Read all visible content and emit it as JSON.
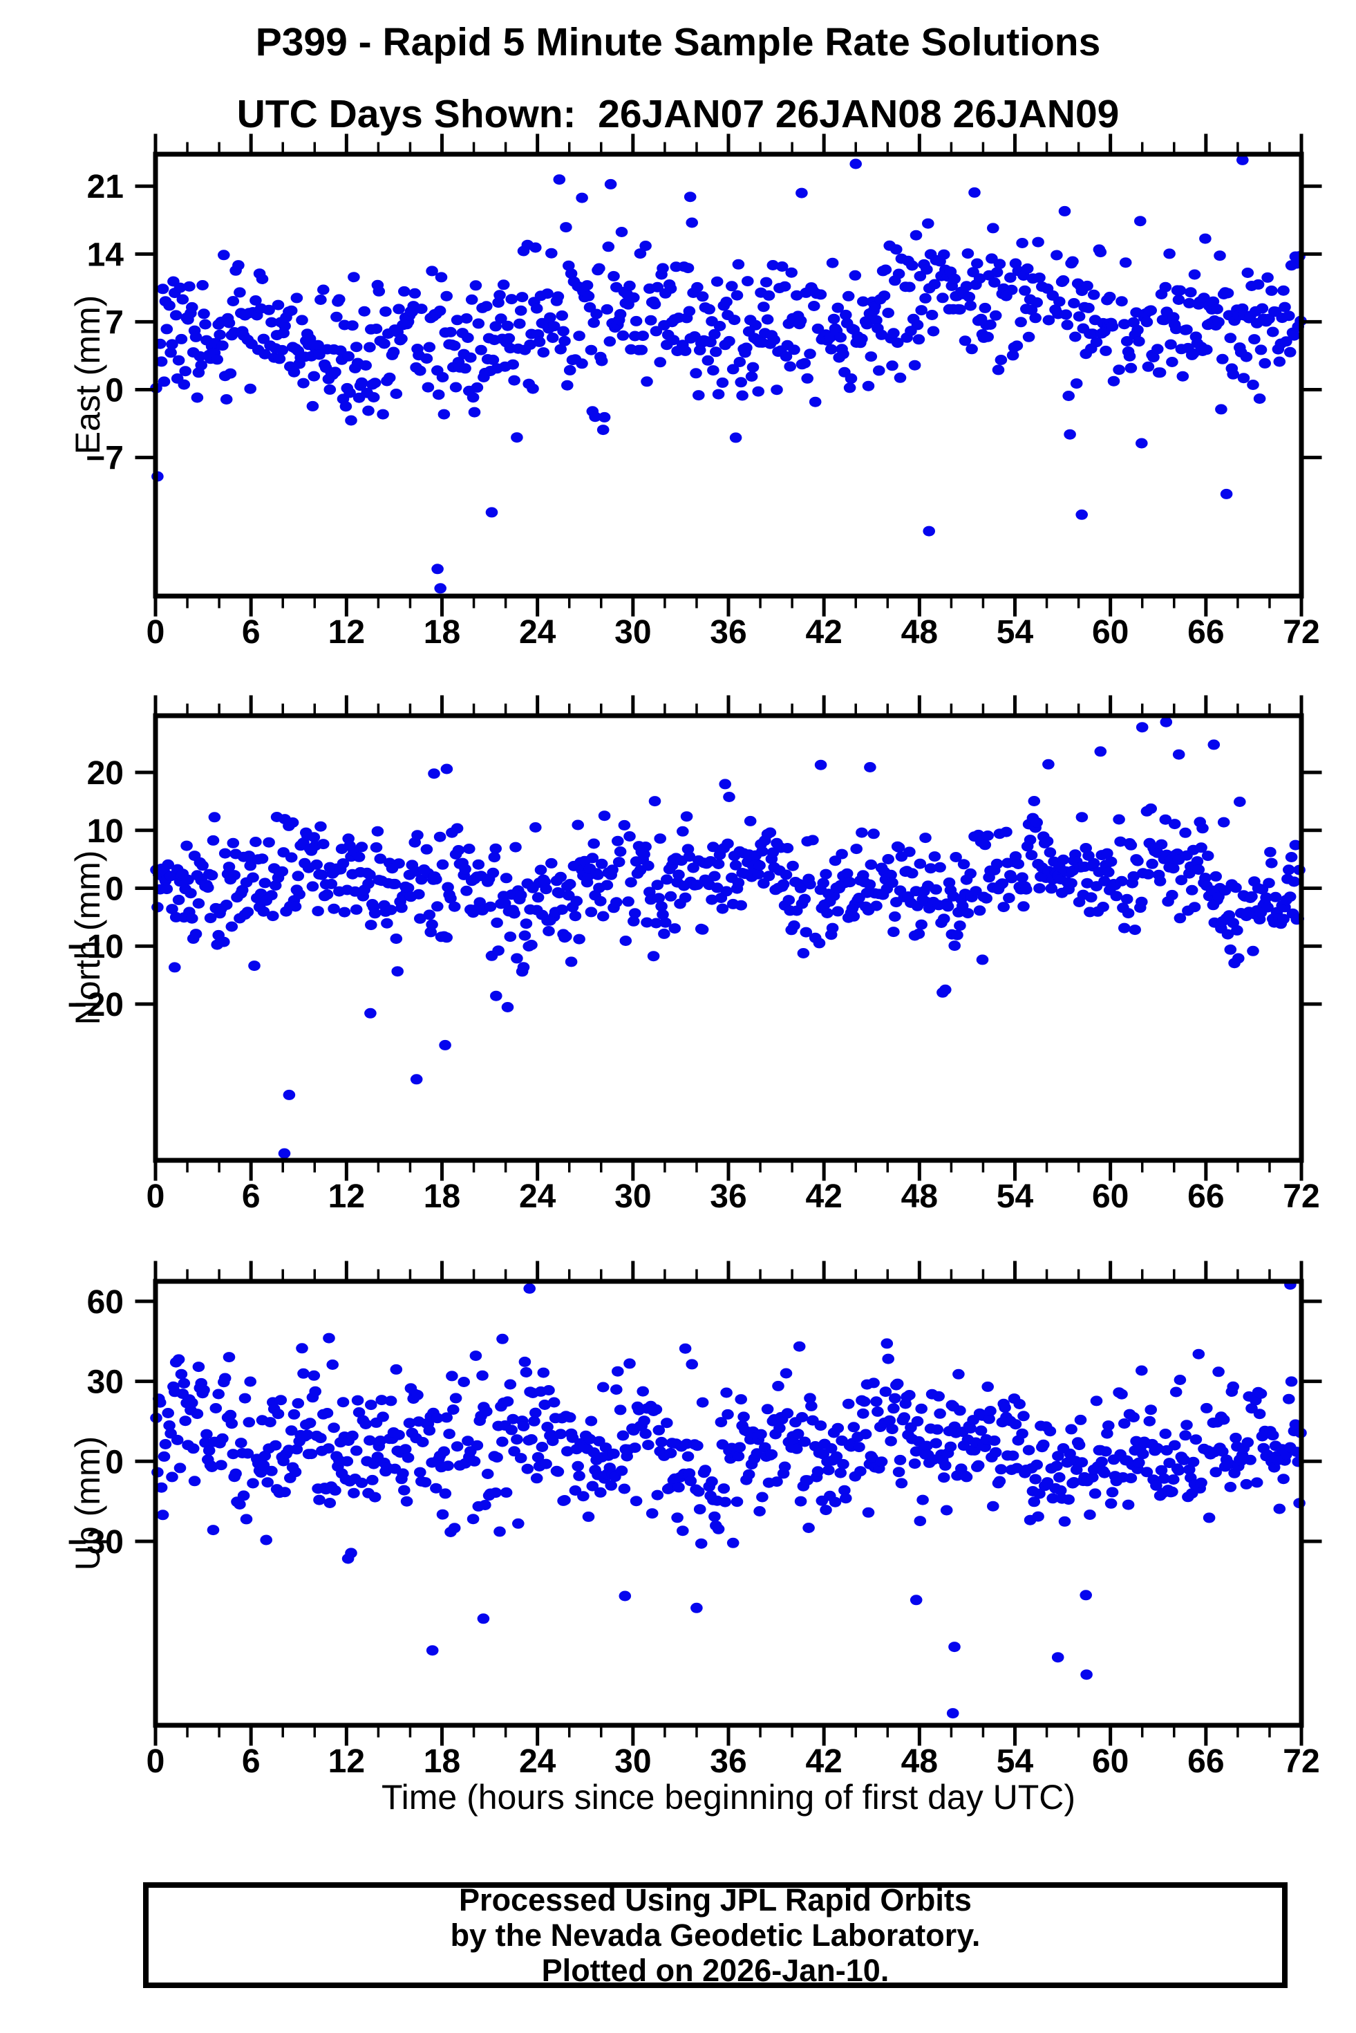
{
  "title": {
    "line1": "P399 - Rapid 5 Minute Sample Rate Solutions",
    "line2": "UTC Days Shown:  26JAN07 26JAN08 26JAN09"
  },
  "footer": {
    "lines": [
      "Processed Using JPL Rapid Orbits",
      "by the Nevada Geodetic Laboratory.",
      "Plotted on 2026-Jan-10."
    ]
  },
  "chart_data": {
    "type": "scatter",
    "station": "P399",
    "utc_days_shown": [
      "26JAN07",
      "26JAN08",
      "26JAN09"
    ],
    "x": {
      "label": "Time (hours since beginning of first day UTC)",
      "min": 0,
      "max": 72,
      "major_tick_step": 6,
      "minor_tick_step": 2,
      "major_ticks": [
        0,
        6,
        12,
        18,
        24,
        30,
        36,
        42,
        48,
        54,
        60,
        66,
        72
      ]
    },
    "marker": {
      "shape": "ellipse",
      "color": "#0505ee",
      "rx": 8.8,
      "ry": 7.5
    },
    "sample_rate_minutes": 5,
    "panels": [
      {
        "ylabel": "East (mm)",
        "ylim": [
          -21.3,
          24.3
        ],
        "yticks": [
          -7,
          0,
          7,
          14,
          21
        ],
        "n_samples": 864,
        "generator": {
          "seed": 1007,
          "drop_rate": 0.09,
          "base": 4.6,
          "slope": 0.062,
          "waves": [
            [
              24,
              1.7,
              0.6
            ],
            [
              8.2,
              1.15,
              2.0
            ]
          ],
          "sd": 3.35,
          "tail_prob": 0.05,
          "tail_mult": 2.0
        },
        "outliers": [
          [
            17.72,
            -18.5
          ],
          [
            17.9,
            -20.5
          ],
          [
            28.6,
            21.2
          ],
          [
            44.0,
            23.3
          ],
          [
            68.3,
            23.7
          ],
          [
            33.6,
            19.9
          ],
          [
            26.8,
            19.8
          ],
          [
            40.6,
            20.3
          ],
          [
            48.6,
            -14.6
          ],
          [
            58.2,
            -12.9
          ]
        ]
      },
      {
        "ylabel": "North (mm)",
        "ylim": [
          -47.0,
          29.8
        ],
        "yticks": [
          -20,
          -10,
          0,
          10,
          20
        ],
        "n_samples": 864,
        "generator": {
          "seed": 2008,
          "drop_rate": 0.09,
          "base": 0.6,
          "slope": 0.012,
          "waves": [
            [
              24,
              2.6,
              -1.1
            ],
            [
              9,
              2.1,
              0.7
            ]
          ],
          "sd": 4.7,
          "tail_prob": 0.05,
          "tail_mult": 1.9
        },
        "outliers": [
          [
            8.1,
            -45.8
          ],
          [
            8.4,
            -35.7
          ],
          [
            16.4,
            -33.0
          ],
          [
            18.2,
            -27.1
          ],
          [
            13.5,
            -21.6
          ],
          [
            21.4,
            -18.6
          ],
          [
            62.0,
            27.8
          ],
          [
            63.5,
            28.7
          ],
          [
            64.3,
            23.1
          ],
          [
            66.5,
            24.8
          ],
          [
            56.1,
            21.4
          ],
          [
            41.8,
            21.3
          ],
          [
            17.5,
            19.8
          ],
          [
            18.3,
            20.6
          ],
          [
            44.9,
            20.9
          ]
        ]
      },
      {
        "ylabel": "Up (mm)",
        "ylim": [
          -99.0,
          67.5
        ],
        "yticks": [
          -30,
          0,
          30,
          60
        ],
        "n_samples": 864,
        "generator": {
          "seed": 2009,
          "drop_rate": 0.09,
          "base": 8.8,
          "slope": -0.095,
          "waves": [
            [
              24,
              4.5,
              1.7
            ],
            [
              7.3,
              3.8,
              0.2
            ]
          ],
          "sd": 12.3,
          "tail_prob": 0.05,
          "tail_mult": 1.9
        },
        "outliers": [
          [
            50.1,
            -94.5
          ],
          [
            50.2,
            -69.6
          ],
          [
            58.5,
            -80.0
          ],
          [
            17.4,
            -70.9
          ],
          [
            20.6,
            -59.0
          ],
          [
            34.0,
            -55.0
          ],
          [
            56.7,
            -73.5
          ],
          [
            29.5,
            -50.5
          ],
          [
            47.8,
            -52.0
          ],
          [
            12.1,
            -36.5
          ],
          [
            23.5,
            64.8
          ],
          [
            71.3,
            66.3
          ],
          [
            21.8,
            45.9
          ],
          [
            10.9,
            46.2
          ]
        ]
      }
    ]
  },
  "style": {
    "frame_color": "#000000",
    "background": "#ffffff"
  }
}
